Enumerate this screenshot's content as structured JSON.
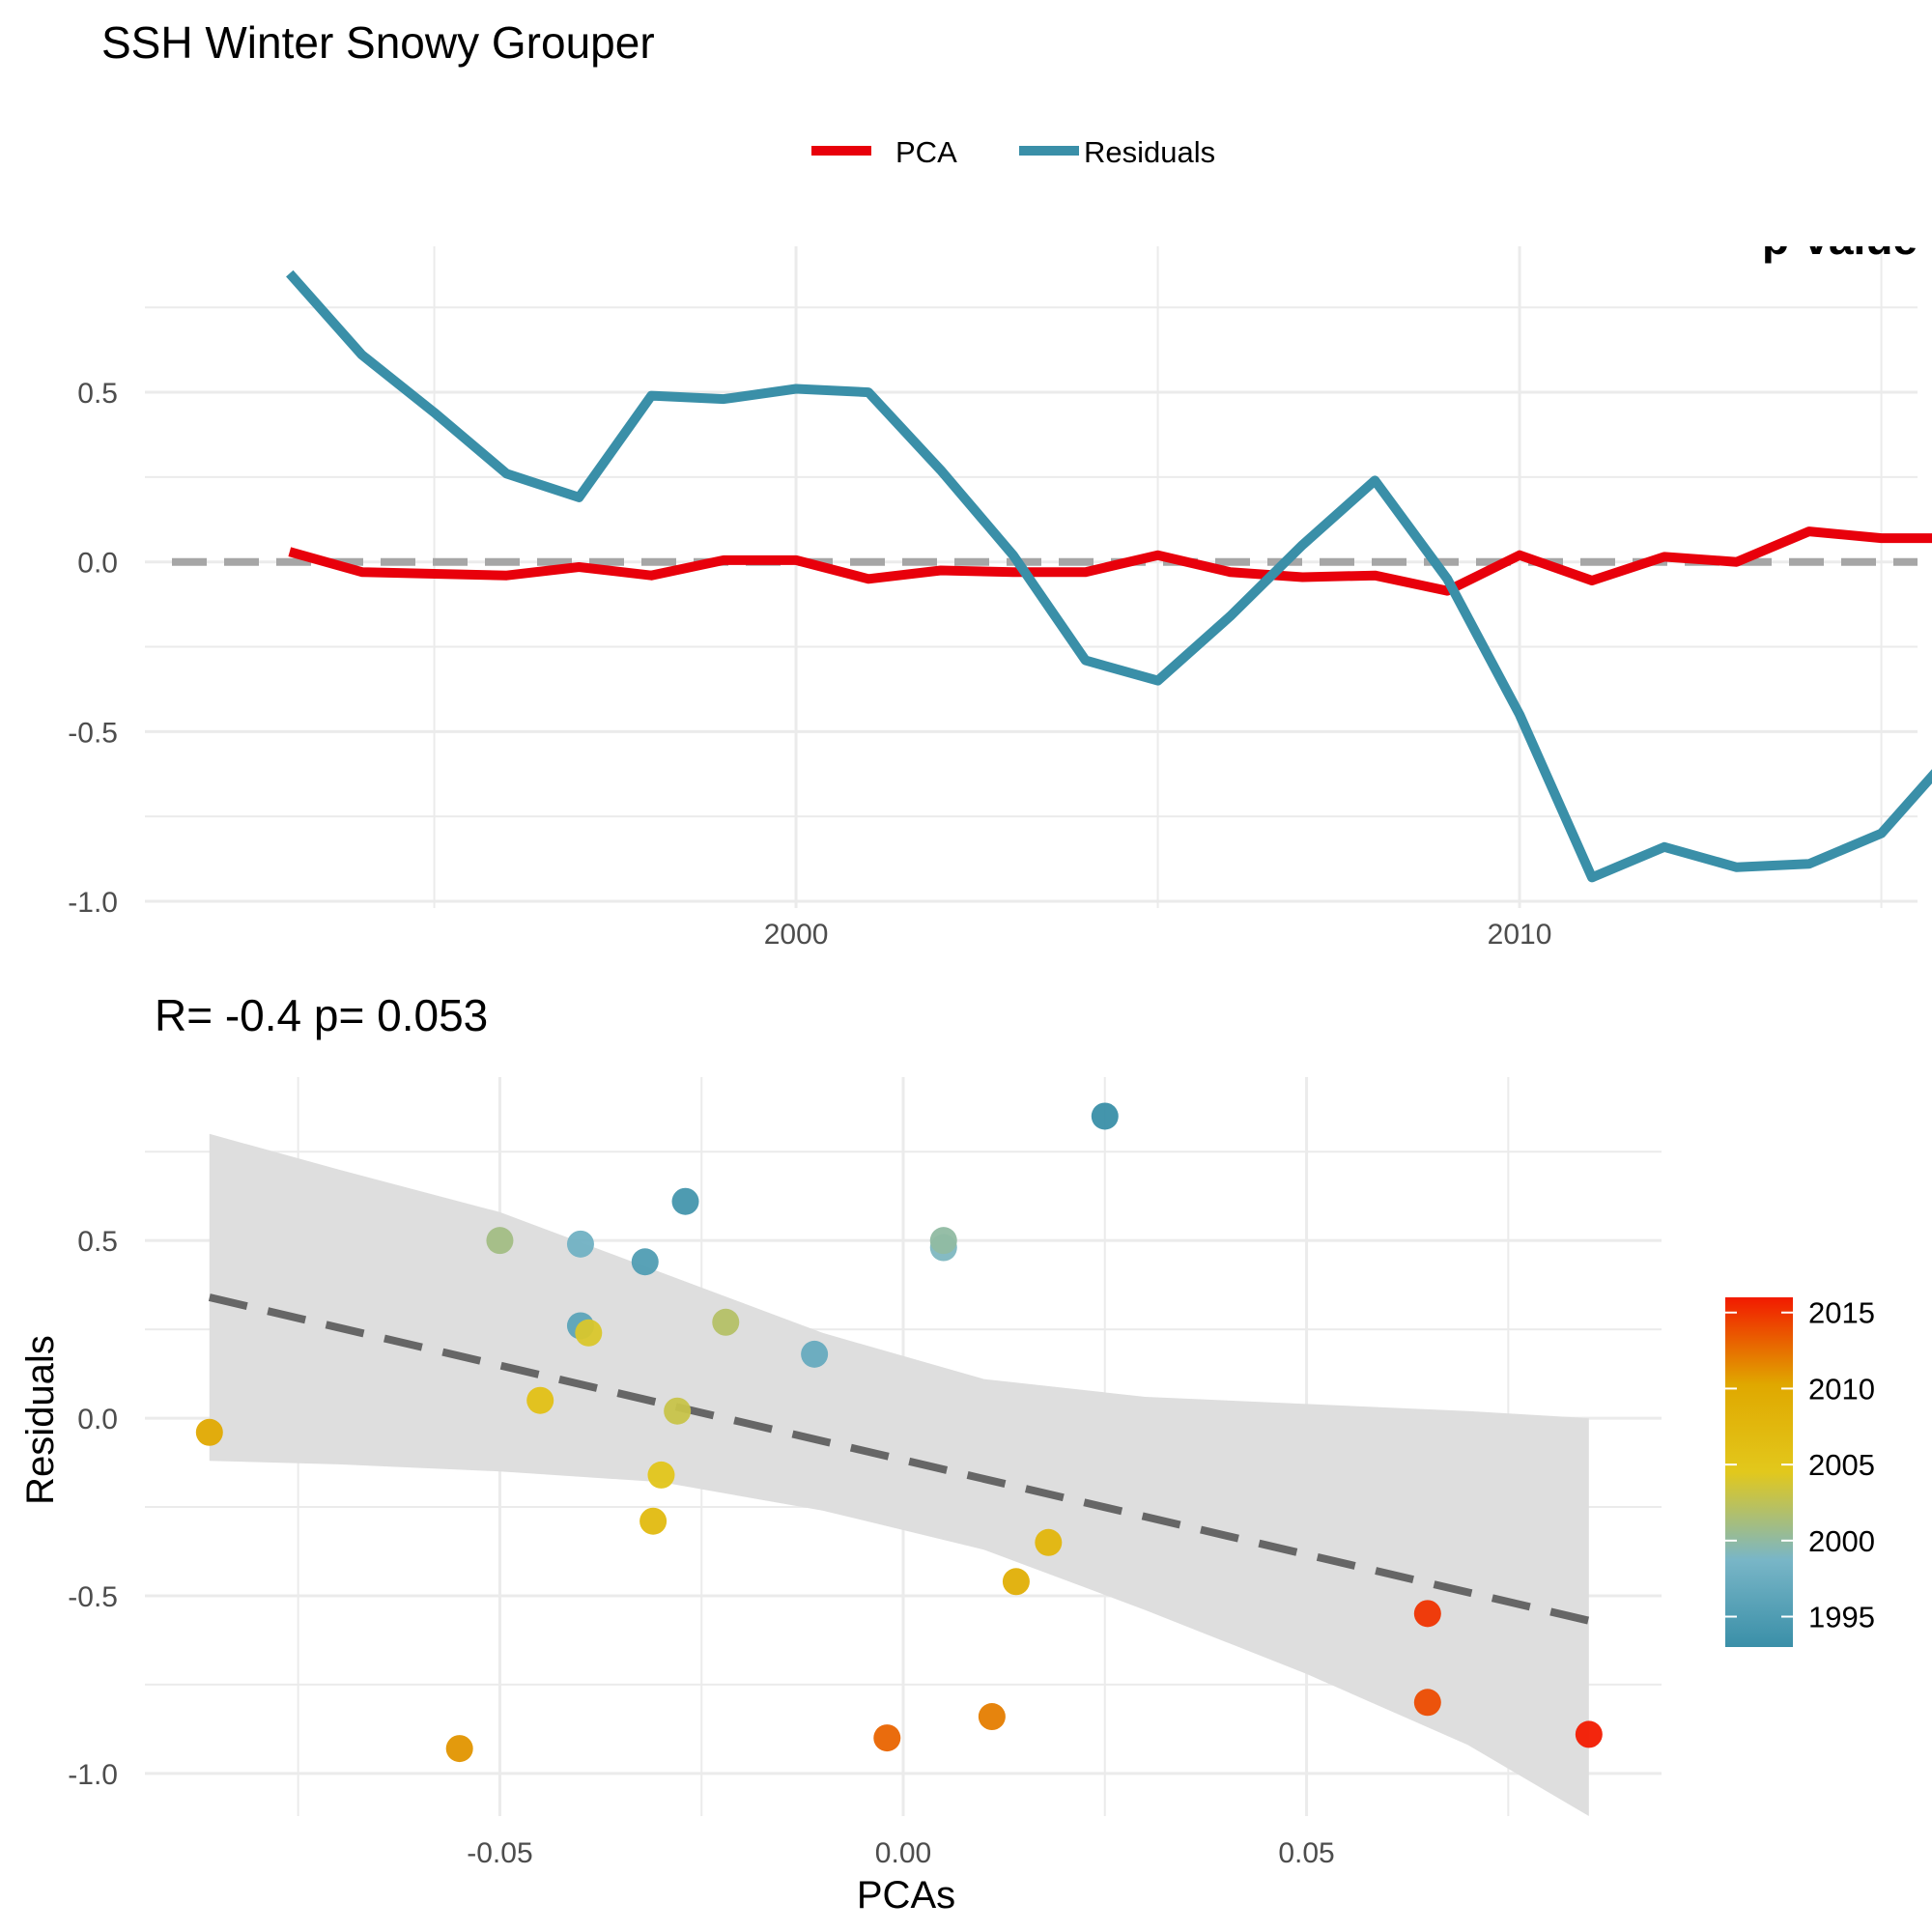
{
  "figure": {
    "title": "SSH Winter Snowy Grouper"
  },
  "chart_data": [
    {
      "type": "line",
      "title": "SSH Winter Snowy Grouper",
      "corner_text": "p-value",
      "xlabel": "",
      "ylabel": "",
      "x_ticks": [
        2000,
        2010
      ],
      "y_ticks": [
        -1.0,
        -0.5,
        0.0,
        0.5
      ],
      "y_tick_labels": [
        "-1.0",
        "-0.5",
        "0.0",
        "0.5"
      ],
      "xlim": [
        1991.0,
        2015.5
      ],
      "ylim": [
        -1.02,
        0.93
      ],
      "grid": true,
      "legend_position": "top",
      "x": [
        1993,
        1994,
        1995,
        1996,
        1997,
        1998,
        1999,
        2000,
        2001,
        2002,
        2003,
        2004,
        2005,
        2006,
        2007,
        2008,
        2009,
        2010,
        2011,
        2012,
        2013,
        2014,
        2015,
        2016
      ],
      "series": [
        {
          "name": "PCA",
          "color": "#e8000b",
          "values": [
            0.03,
            -0.03,
            -0.035,
            -0.04,
            -0.015,
            -0.04,
            0.005,
            0.005,
            -0.05,
            -0.025,
            -0.03,
            -0.03,
            0.02,
            -0.03,
            -0.045,
            -0.04,
            -0.085,
            0.02,
            -0.055,
            0.015,
            0.0,
            0.09,
            0.07,
            0.07
          ]
        },
        {
          "name": "Residuals",
          "color": "#3a8fa8",
          "values": [
            0.85,
            0.61,
            0.44,
            0.26,
            0.19,
            0.49,
            0.48,
            0.51,
            0.5,
            0.27,
            0.02,
            -0.29,
            -0.35,
            -0.16,
            0.05,
            0.24,
            -0.05,
            -0.45,
            -0.93,
            -0.84,
            -0.9,
            -0.89,
            -0.8,
            -0.56
          ]
        }
      ],
      "reference_line": {
        "y": 0.0,
        "style": "dashed",
        "color": "#a6a6a6"
      }
    },
    {
      "type": "scatter",
      "title": "R= -0.4  p= 0.053",
      "xlabel": "PCAs",
      "ylabel": "Residuals",
      "x_ticks": [
        -0.05,
        0.0,
        0.05
      ],
      "x_tick_labels": [
        "-0.05",
        "0.00",
        "0.05"
      ],
      "y_ticks": [
        -1.0,
        -0.5,
        0.0,
        0.5
      ],
      "y_tick_labels": [
        "-1.0",
        "-0.5",
        "0.0",
        "0.5"
      ],
      "xlim": [
        -0.094,
        0.094
      ],
      "ylim": [
        -1.12,
        0.96
      ],
      "grid": true,
      "points": [
        {
          "year": 1993,
          "x": 0.025,
          "y": 0.85
        },
        {
          "year": 1994,
          "x": -0.027,
          "y": 0.61
        },
        {
          "year": 1995,
          "x": -0.032,
          "y": 0.44
        },
        {
          "year": 1996,
          "x": -0.04,
          "y": 0.26
        },
        {
          "year": 1997,
          "x": -0.011,
          "y": 0.18
        },
        {
          "year": 1998,
          "x": -0.04,
          "y": 0.49
        },
        {
          "year": 1999,
          "x": 0.005,
          "y": 0.48
        },
        {
          "year": 2000,
          "x": 0.005,
          "y": 0.5
        },
        {
          "year": 2001,
          "x": -0.05,
          "y": 0.5
        },
        {
          "year": 2002,
          "x": -0.022,
          "y": 0.27
        },
        {
          "year": 2003,
          "x": -0.028,
          "y": 0.02
        },
        {
          "year": 2004,
          "x": -0.039,
          "y": 0.24
        },
        {
          "year": 2005,
          "x": -0.03,
          "y": -0.16
        },
        {
          "year": 2006,
          "x": -0.045,
          "y": 0.05
        },
        {
          "year": 2007,
          "x": -0.031,
          "y": -0.29
        },
        {
          "year": 2008,
          "x": 0.018,
          "y": -0.35
        },
        {
          "year": 2009,
          "x": 0.014,
          "y": -0.46
        },
        {
          "year": 2010,
          "x": -0.086,
          "y": -0.04
        },
        {
          "year": 2011,
          "x": -0.055,
          "y": -0.93
        },
        {
          "year": 2012,
          "x": 0.011,
          "y": -0.84
        },
        {
          "year": 2013,
          "x": -0.002,
          "y": -0.9
        },
        {
          "year": 2014,
          "x": 0.065,
          "y": -0.8
        },
        {
          "year": 2015,
          "x": 0.065,
          "y": -0.55
        },
        {
          "year": 2016,
          "x": 0.085,
          "y": -0.89
        }
      ],
      "fit_line": {
        "x": [
          -0.086,
          0.085
        ],
        "y": [
          0.34,
          -0.57
        ],
        "style": "dashed",
        "color": "#666666"
      },
      "confidence_band": {
        "x": [
          -0.086,
          -0.07,
          -0.05,
          -0.03,
          -0.01,
          0.01,
          0.03,
          0.05,
          0.07,
          0.085
        ],
        "upper": [
          0.8,
          0.7,
          0.58,
          0.41,
          0.24,
          0.11,
          0.06,
          0.04,
          0.02,
          0.0
        ],
        "lower": [
          -0.12,
          -0.13,
          -0.15,
          -0.18,
          -0.26,
          -0.37,
          -0.54,
          -0.72,
          -0.92,
          -1.12
        ],
        "color": "#dedede"
      },
      "colorbar": {
        "ticks": [
          1995,
          2000,
          2005,
          2010,
          2015
        ],
        "tick_labels": [
          "1995",
          "2000",
          "2005",
          "2010",
          "2015"
        ],
        "range": [
          1993,
          2016
        ],
        "colors": [
          "#3a8fa8",
          "#79b6c7",
          "#e2c81c",
          "#e0a800",
          "#f21a00"
        ]
      }
    }
  ]
}
